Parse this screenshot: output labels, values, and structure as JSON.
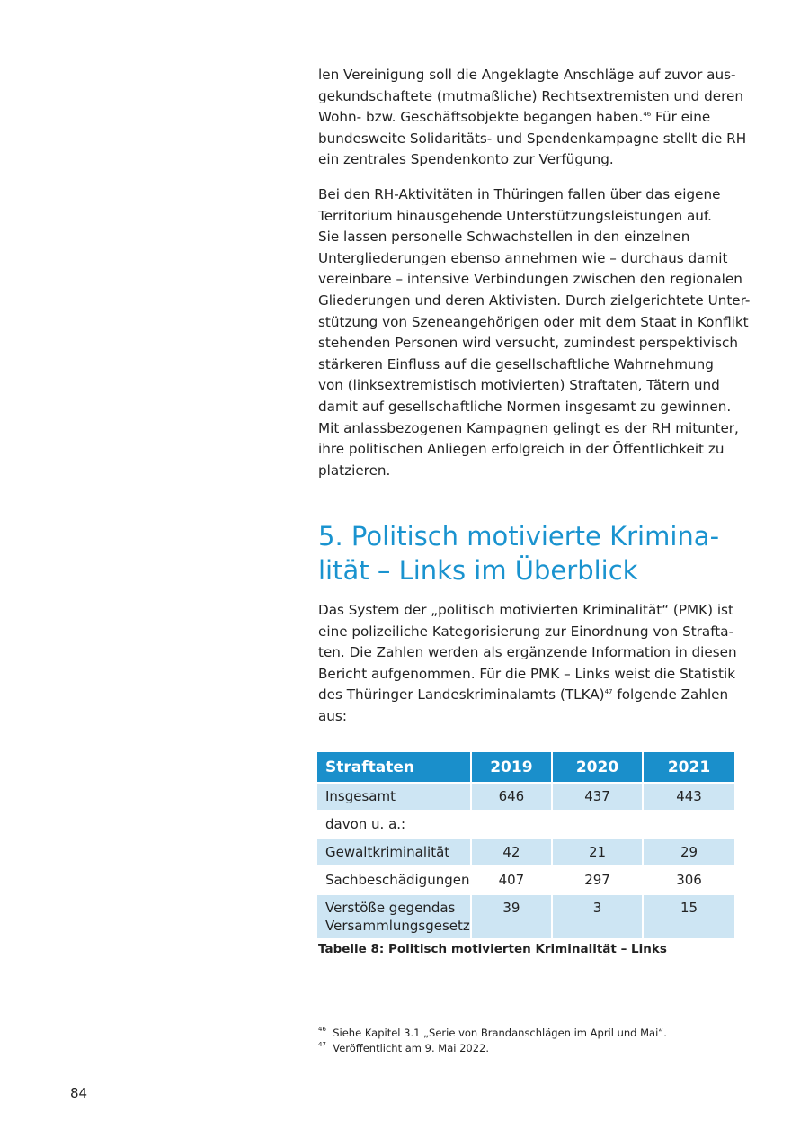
{
  "paragraph1": [
    {
      "t": "len Vereinigung soll die Angeklagte Anschläge auf zuvor aus-"
    },
    {
      "t": "gekundschaftete (mutmaßliche) Rechtsextremisten und deren"
    },
    {
      "t": "Wohn- bzw. Geschäftsobjekte begangen haben.",
      "sup": "46",
      "post": " Für eine"
    },
    {
      "t": "bundesweite Solidaritäts- und Spendenkampagne stellt die RH"
    },
    {
      "t": "ein zentrales Spendenkonto zur Verfügung."
    }
  ],
  "paragraph2": [
    {
      "t": "Bei den RH-Aktivitäten in Thüringen fallen über das eigene"
    },
    {
      "t": "Territorium hinausgehende Unterstützungsleistungen auf."
    },
    {
      "t": "Sie lassen personelle Schwachstellen in den einzelnen"
    },
    {
      "t": "Untergliederungen ebenso annehmen wie – durchaus damit"
    },
    {
      "t": "vereinbare – intensive Verbindungen zwischen den regionalen"
    },
    {
      "t": "Gliederungen und deren Aktivisten. Durch zielgerichtete Unter-"
    },
    {
      "t": "stützung von Szeneangehörigen oder mit dem Staat in Konflikt"
    },
    {
      "t": "stehenden Personen wird versucht, zumindest perspektivisch"
    },
    {
      "t": "stärkeren Einfluss auf die gesellschaftliche Wahrnehmung"
    },
    {
      "t": "von (linksextremistisch motivierten) Straftaten, Tätern und"
    },
    {
      "t": "damit auf gesellschaftliche Normen insgesamt zu gewinnen."
    },
    {
      "t": "Mit anlassbezogenen Kampagnen gelingt es der RH mitunter,"
    },
    {
      "t": "ihre politischen Anliegen erfolgreich in der Öffentlichkeit zu"
    },
    {
      "t": "platzieren."
    }
  ],
  "heading": [
    "5.  Politisch motivierte Krimina-",
    "lität – Links im Überblick"
  ],
  "paragraph3": [
    {
      "t": "Das System der „politisch motivierten Kriminalität“ (PMK) ist"
    },
    {
      "t": "eine polizeiliche Kategorisierung zur Einordnung von Strafta-"
    },
    {
      "t": "ten. Die Zahlen werden als ergänzende Information in diesen"
    },
    {
      "t": "Bericht aufgenommen. Für die PMK – Links weist die Statistik"
    },
    {
      "t": "des Thüringer Landeskriminalamts (TLKA)",
      "sup": "47",
      "post": " folgende Zahlen"
    },
    {
      "t": "aus:"
    }
  ],
  "table": {
    "headers": [
      "Straftaten",
      "2019",
      "2020",
      "2021"
    ],
    "rows": [
      {
        "cells": [
          "Insgesamt",
          "646",
          "437",
          "443"
        ],
        "shaded": true
      },
      {
        "cells": [
          "davon u. a.:",
          "",
          "",
          ""
        ],
        "shaded": false
      },
      {
        "cells": [
          "Gewaltkriminalität",
          "42",
          "21",
          "29"
        ],
        "shaded": true
      },
      {
        "cells": [
          "Sachbeschädigungen",
          "407",
          "297",
          "306"
        ],
        "shaded": false
      },
      {
        "cells": [
          "Verstöße gegendas Versammlungsgesetz",
          "39",
          "3",
          "15"
        ],
        "shaded": true
      }
    ],
    "header_color": "#1a8fcb",
    "shade_color": "#cde5f3"
  },
  "caption": "Tabelle 8: Politisch motivierten Kriminalität – Links",
  "footnotes": [
    {
      "num": "46",
      "text": "Siehe Kapitel 3.1 „Serie von Brandanschlägen im April und Mai“."
    },
    {
      "num": "47",
      "text": "Veröffentlicht am 9. Mai 2022."
    }
  ],
  "page_number": "84",
  "accent_color": "#1a93cf"
}
